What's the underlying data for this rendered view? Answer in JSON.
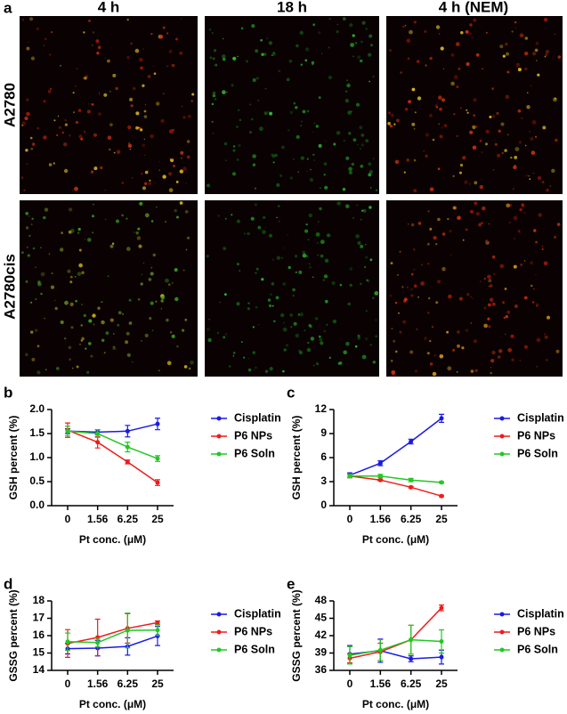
{
  "figure": {
    "panel_label": "a",
    "columns": [
      "4 h",
      "18 h",
      "4 h (NEM)"
    ],
    "rows": [
      "A2780",
      "A2780cis"
    ]
  },
  "chart_data": [
    {
      "type": "line",
      "panel_label": "b",
      "y_label": "GSH percent (%)",
      "x_label": "Pt conc. (μM)",
      "categories": [
        "0",
        "1.56",
        "6.25",
        "25"
      ],
      "ylim": [
        0,
        2
      ],
      "yticks": [
        {
          "value": 0,
          "label": "0.0"
        },
        0.5,
        {
          "value": 1,
          "label": "1.0"
        },
        1.5,
        {
          "value": 2,
          "label": "2.0"
        }
      ],
      "series": [
        {
          "name": "Cisplatin",
          "color": "#1a1ae6",
          "values": [
            1.55,
            1.53,
            1.55,
            1.7
          ],
          "errors": [
            0.05,
            0.05,
            0.12,
            0.12
          ]
        },
        {
          "name": "P6 NPs",
          "color": "#ee1c1c",
          "values": [
            1.57,
            1.32,
            0.91,
            0.48
          ],
          "errors": [
            0.15,
            0.12,
            0.04,
            0.06
          ]
        },
        {
          "name": "P6 Soln",
          "color": "#22c822",
          "values": [
            1.55,
            1.5,
            1.22,
            0.98
          ],
          "errors": [
            0.1,
            0.08,
            0.1,
            0.06
          ]
        }
      ]
    },
    {
      "type": "line",
      "panel_label": "c",
      "y_label": "GSH percent (%)",
      "x_label": "Pt conc. (μM)",
      "categories": [
        "0",
        "1.56",
        "6.25",
        "25"
      ],
      "ylim": [
        0,
        12
      ],
      "yticks": [
        0,
        3,
        6,
        9,
        12
      ],
      "series": [
        {
          "name": "Cisplatin",
          "color": "#1a1ae6",
          "values": [
            3.8,
            5.3,
            8.0,
            10.9
          ],
          "errors": [
            0.3,
            0.3,
            0.3,
            0.5
          ]
        },
        {
          "name": "P6 NPs",
          "color": "#ee1c1c",
          "values": [
            3.7,
            3.2,
            2.3,
            1.2
          ],
          "errors": [
            0.2,
            0.1,
            0.1,
            0.1
          ]
        },
        {
          "name": "P6 Soln",
          "color": "#22c822",
          "values": [
            3.7,
            3.7,
            3.2,
            2.9
          ],
          "errors": [
            0.2,
            0.2,
            0.2,
            0.1
          ]
        }
      ]
    },
    {
      "type": "line",
      "panel_label": "d",
      "y_label": "GSSG percent (%)",
      "x_label": "Pt conc. (μM)",
      "categories": [
        "0",
        "1.56",
        "6.25",
        "25"
      ],
      "ylim": [
        14,
        18
      ],
      "yticks": [
        14,
        15,
        16,
        17,
        18
      ],
      "series": [
        {
          "name": "Cisplatin",
          "color": "#1a1ae6",
          "values": [
            15.25,
            15.28,
            15.38,
            15.98
          ],
          "errors": [
            0.3,
            0.45,
            0.5,
            0.55
          ]
        },
        {
          "name": "P6 NPs",
          "color": "#ee1c1c",
          "values": [
            15.55,
            15.9,
            16.42,
            16.75
          ],
          "errors": [
            0.8,
            1.05,
            0.85,
            0.1
          ]
        },
        {
          "name": "P6 Soln",
          "color": "#22c822",
          "values": [
            15.65,
            15.6,
            16.3,
            16.32
          ],
          "errors": [
            0.5,
            0.25,
            1.0,
            0.3
          ]
        }
      ]
    },
    {
      "type": "line",
      "panel_label": "e",
      "y_label": "GSSG percent (%)",
      "x_label": "Pt conc. (μM)",
      "categories": [
        "0",
        "1.56",
        "6.25",
        "25"
      ],
      "ylim": [
        36,
        48
      ],
      "yticks": [
        36,
        39,
        42,
        45,
        48
      ],
      "series": [
        {
          "name": "Cisplatin",
          "color": "#1a1ae6",
          "values": [
            38.8,
            39.4,
            38.0,
            38.3
          ],
          "errors": [
            1.5,
            2.0,
            0.5,
            1.2
          ]
        },
        {
          "name": "P6 NPs",
          "color": "#ee1c1c",
          "values": [
            38.1,
            39.2,
            41.3,
            46.8
          ],
          "errors": [
            0.8,
            1.5,
            2.5,
            0.5
          ]
        },
        {
          "name": "P6 Soln",
          "color": "#22c822",
          "values": [
            38.6,
            39.5,
            41.3,
            41.0
          ],
          "errors": [
            1.5,
            1.8,
            2.5,
            2.0
          ]
        }
      ]
    }
  ]
}
